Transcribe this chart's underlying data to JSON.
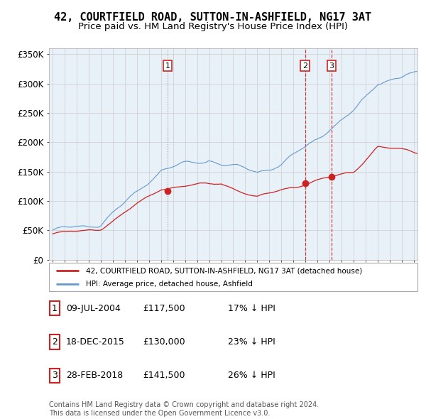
{
  "title": "42, COURTFIELD ROAD, SUTTON-IN-ASHFIELD, NG17 3AT",
  "subtitle": "Price paid vs. HM Land Registry's House Price Index (HPI)",
  "ylabel_ticks": [
    "£0",
    "£50K",
    "£100K",
    "£150K",
    "£200K",
    "£250K",
    "£300K",
    "£350K"
  ],
  "ytick_values": [
    0,
    50000,
    100000,
    150000,
    200000,
    250000,
    300000,
    350000
  ],
  "ylim": [
    0,
    360000
  ],
  "xlim_start": 1994.7,
  "xlim_end": 2025.3,
  "sale_years": [
    2004.54,
    2015.96,
    2018.16
  ],
  "sale_prices": [
    117500,
    130000,
    141500
  ],
  "sale_labels": [
    "1",
    "2",
    "3"
  ],
  "vline_colors": [
    "#999999",
    "#cc2222",
    "#cc2222"
  ],
  "vline_styles": [
    "dotted",
    "dashed",
    "dashed"
  ],
  "red_line_color": "#cc2222",
  "blue_line_color": "#6699cc",
  "plot_bg_color": "#e8f0f8",
  "legend_red_label": "42, COURTFIELD ROAD, SUTTON-IN-ASHFIELD, NG17 3AT (detached house)",
  "legend_blue_label": "HPI: Average price, detached house, Ashfield",
  "table_data": [
    [
      "1",
      "09-JUL-2004",
      "£117,500",
      "17% ↓ HPI"
    ],
    [
      "2",
      "18-DEC-2015",
      "£130,000",
      "23% ↓ HPI"
    ],
    [
      "3",
      "28-FEB-2018",
      "£141,500",
      "26% ↓ HPI"
    ]
  ],
  "footer": "Contains HM Land Registry data © Crown copyright and database right 2024.\nThis data is licensed under the Open Government Licence v3.0.",
  "grid_color": "#cccccc",
  "title_fontsize": 11,
  "subtitle_fontsize": 9.5,
  "tick_fontsize": 8.5,
  "label_box_color": "#cc2222"
}
